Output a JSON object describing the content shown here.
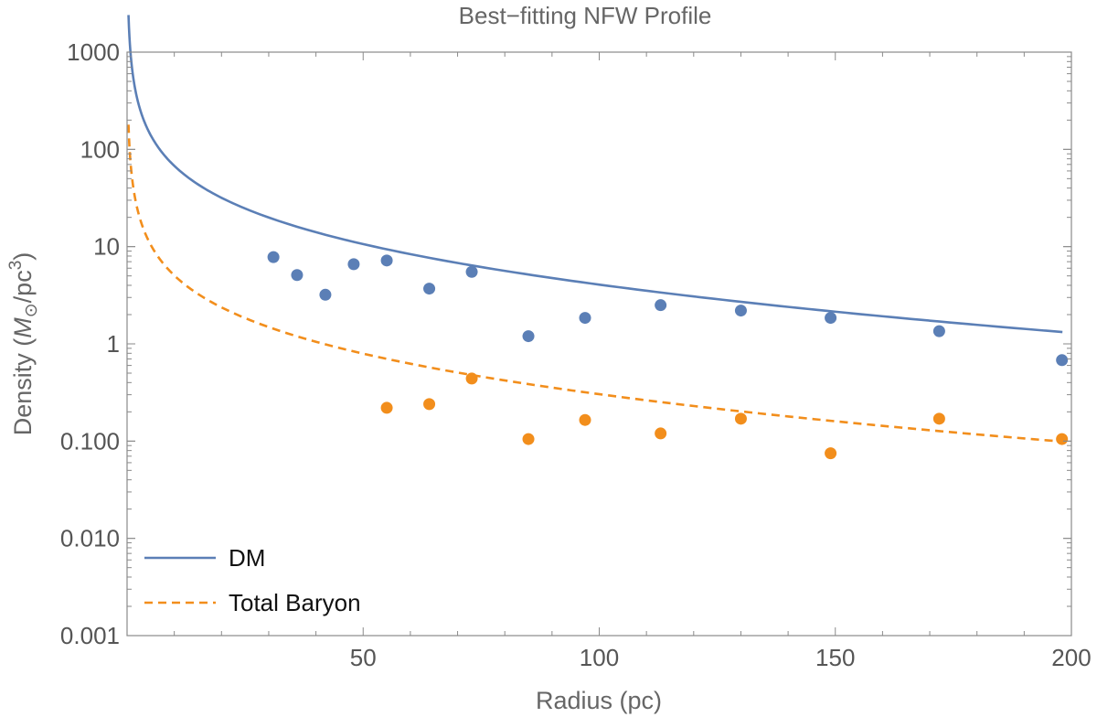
{
  "chart_data": {
    "type": "scatter",
    "title": "Best−fitting NFW Profile",
    "xlabel": "Radius (pc)",
    "ylabel_prefix": "Density (",
    "ylabel_unit_m": "M",
    "ylabel_unit_sub": "⊙",
    "ylabel_unit_rest": "/pc",
    "ylabel_unit_sup": "3",
    "ylabel_suffix": ")",
    "xlim": [
      0,
      200
    ],
    "ylim": [
      0.001,
      1000
    ],
    "yscale": "log",
    "x_ticks": [
      50,
      100,
      150,
      200
    ],
    "x_tick_labels": [
      "50",
      "100",
      "150",
      "200"
    ],
    "y_ticks": [
      0.001,
      0.01,
      0.1,
      1,
      10,
      100,
      1000
    ],
    "y_tick_labels": [
      "0.001",
      "0.010",
      "0.100",
      "1",
      "10",
      "100",
      "1000"
    ],
    "grid": false,
    "legend_position": "bottom-left",
    "series": [
      {
        "name": "DM",
        "color": "#5b7fb6",
        "line_style": "solid",
        "curve_model": "nfw",
        "curve_params": {
          "rho_s": 2.41,
          "r_s": 300
        },
        "points": [
          {
            "x": 31,
            "y": 7.8
          },
          {
            "x": 36,
            "y": 5.1
          },
          {
            "x": 42,
            "y": 3.2
          },
          {
            "x": 48,
            "y": 6.6
          },
          {
            "x": 55,
            "y": 7.2
          },
          {
            "x": 64,
            "y": 3.7
          },
          {
            "x": 73,
            "y": 5.5
          },
          {
            "x": 85,
            "y": 1.2
          },
          {
            "x": 97,
            "y": 1.85
          },
          {
            "x": 113,
            "y": 2.5
          },
          {
            "x": 130,
            "y": 2.2
          },
          {
            "x": 149,
            "y": 1.85
          },
          {
            "x": 172,
            "y": 1.35
          },
          {
            "x": 198,
            "y": 0.68
          }
        ]
      },
      {
        "name": "Total Baryon",
        "color": "#f28e1c",
        "line_style": "dashed",
        "curve_model": "nfw",
        "curve_params": {
          "rho_s": 0.18,
          "r_s": 300
        },
        "points": [
          {
            "x": 55,
            "y": 0.22
          },
          {
            "x": 64,
            "y": 0.24
          },
          {
            "x": 73,
            "y": 0.44
          },
          {
            "x": 85,
            "y": 0.105
          },
          {
            "x": 97,
            "y": 0.165
          },
          {
            "x": 113,
            "y": 0.12
          },
          {
            "x": 130,
            "y": 0.17
          },
          {
            "x": 149,
            "y": 0.075
          },
          {
            "x": 172,
            "y": 0.17
          },
          {
            "x": 198,
            "y": 0.105
          }
        ]
      }
    ]
  }
}
